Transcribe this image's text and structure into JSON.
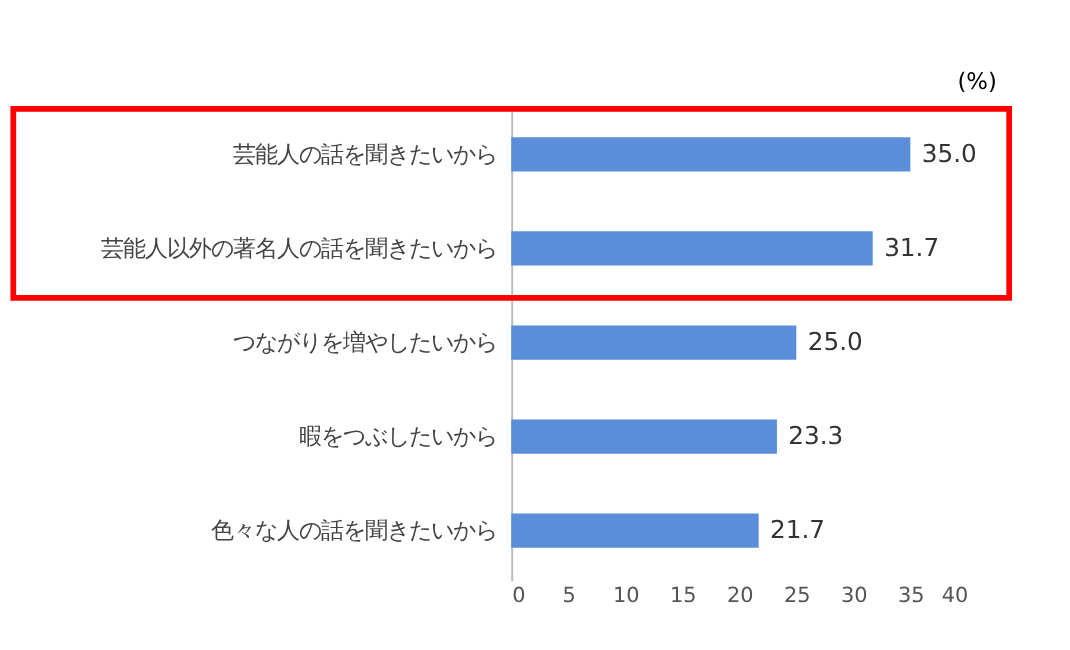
{
  "chart_data": {
    "type": "bar",
    "orientation": "horizontal",
    "xlabel": "(%)",
    "categories": [
      "芸能人の話を聞きたいから",
      "芸能人以外の著名人の話を聞きたいから",
      "つながりを増やしたいから",
      "暇をつぶしたいから",
      "色々な人の話を聞きたいから"
    ],
    "values": [
      35.0,
      31.7,
      25.0,
      23.3,
      21.7
    ],
    "color": "#5b8ed8",
    "xlim": [
      0,
      40
    ],
    "xticks": [
      0,
      5,
      10,
      15,
      20,
      25,
      30,
      35,
      40
    ],
    "grid": false,
    "data_labels": true,
    "value_labels": [
      "35.0",
      "31.7",
      "25.0",
      "23.3",
      "21.7"
    ]
  }
}
